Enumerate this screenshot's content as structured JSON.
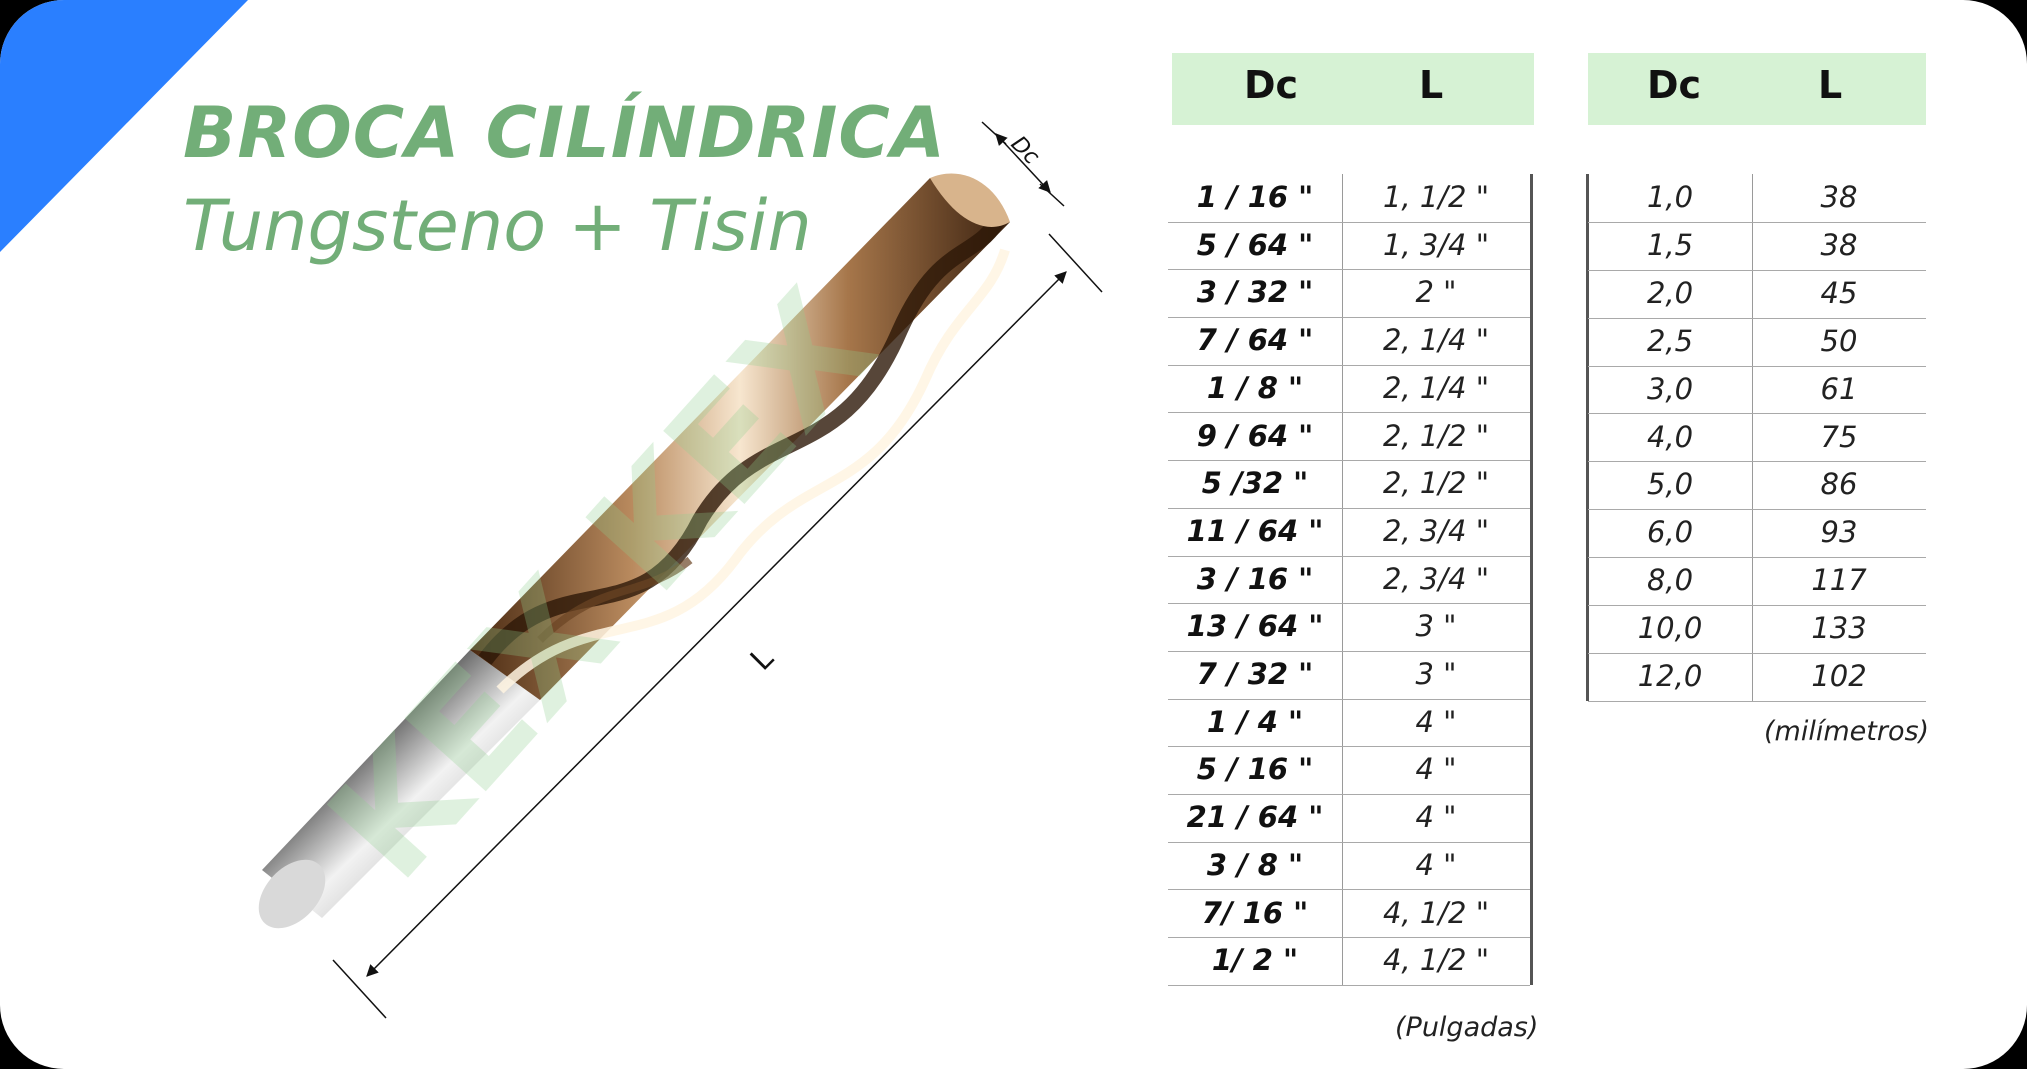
{
  "title": "BROCA CILÍNDRICA",
  "subtitle": "Tungsteno + Tisin",
  "diagram": {
    "dc_label": "Dc",
    "l_label": "L"
  },
  "watermark": "KEX KEX",
  "colors": {
    "accent_blue": "#2a7fff",
    "title_green": "#72ae78",
    "header_green": "#d6f2d4"
  },
  "inch_table": {
    "headers": [
      "Dc",
      "L"
    ],
    "rows": [
      [
        "1 / 16 \"",
        "1, 1/2 \""
      ],
      [
        "5 / 64 \"",
        "1, 3/4 \""
      ],
      [
        "3 / 32 \"",
        "2 \""
      ],
      [
        "7 / 64 \"",
        "2, 1/4 \""
      ],
      [
        "1 / 8 \"",
        "2, 1/4 \""
      ],
      [
        "9 / 64 \"",
        "2, 1/2 \""
      ],
      [
        "5 /32 \"",
        "2, 1/2 \""
      ],
      [
        "11 / 64 \"",
        "2, 3/4 \""
      ],
      [
        "3 / 16 \"",
        "2, 3/4 \""
      ],
      [
        "13 / 64 \"",
        "3 \""
      ],
      [
        "7 / 32 \"",
        "3 \""
      ],
      [
        "1 / 4 \"",
        "4 \""
      ],
      [
        "5 / 16 \"",
        "4 \""
      ],
      [
        "21 / 64 \"",
        "4 \""
      ],
      [
        "3 / 8 \"",
        "4 \""
      ],
      [
        "7/ 16 \"",
        "4, 1/2 \""
      ],
      [
        "1/ 2 \"",
        "4, 1/2 \""
      ]
    ],
    "unit_note": "(Pulgadas)"
  },
  "mm_table": {
    "headers": [
      "Dc",
      "L"
    ],
    "rows": [
      [
        "1,0",
        "38"
      ],
      [
        "1,5",
        "38"
      ],
      [
        "2,0",
        "45"
      ],
      [
        "2,5",
        "50"
      ],
      [
        "3,0",
        "61"
      ],
      [
        "4,0",
        "75"
      ],
      [
        "5,0",
        "86"
      ],
      [
        "6,0",
        "93"
      ],
      [
        "8,0",
        "117"
      ],
      [
        "10,0",
        "133"
      ],
      [
        "12,0",
        "102"
      ]
    ],
    "unit_note": "(milímetros)"
  }
}
